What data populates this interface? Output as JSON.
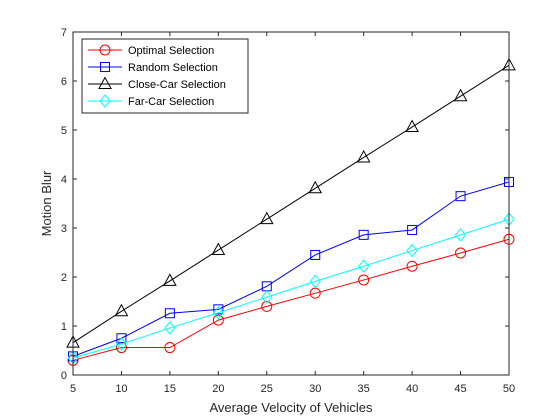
{
  "chart_data": {
    "type": "line",
    "xlabel": "Average Velocity of Vehicles",
    "ylabel": "Motion Blur",
    "xlim": [
      5,
      50
    ],
    "ylim": [
      0,
      7
    ],
    "xticks": [
      5,
      10,
      15,
      20,
      25,
      30,
      35,
      40,
      45,
      50
    ],
    "yticks": [
      0,
      1,
      2,
      3,
      4,
      5,
      6,
      7
    ],
    "grid": false,
    "legend_position": "top-left",
    "x": [
      5,
      10,
      15,
      20,
      25,
      30,
      35,
      40,
      45,
      50
    ],
    "series": [
      {
        "name": "Optimal Selection",
        "color": "#ff0000",
        "marker": "circle",
        "values": [
          0.3,
          0.56,
          0.56,
          1.12,
          1.4,
          1.67,
          1.94,
          2.22,
          2.49,
          2.77
        ]
      },
      {
        "name": "Random Selection",
        "color": "#0000ff",
        "marker": "square",
        "values": [
          0.38,
          0.75,
          1.26,
          1.34,
          1.81,
          2.45,
          2.86,
          2.96,
          3.65,
          3.94
        ]
      },
      {
        "name": "Close-Car Selection",
        "color": "#000000",
        "marker": "triangle",
        "values": [
          0.66,
          1.3,
          1.92,
          2.55,
          3.18,
          3.81,
          4.44,
          5.06,
          5.69,
          6.32
        ]
      },
      {
        "name": "Far-Car Selection",
        "color": "#00ffff",
        "marker": "diamond",
        "values": [
          0.35,
          0.63,
          0.96,
          1.27,
          1.59,
          1.91,
          2.22,
          2.54,
          2.86,
          3.18
        ]
      }
    ]
  }
}
